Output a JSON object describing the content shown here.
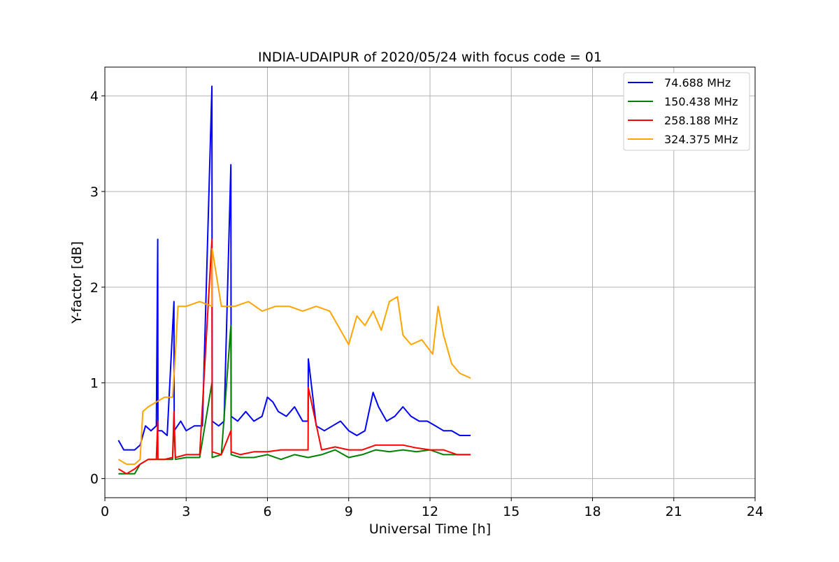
{
  "chart_data": {
    "type": "line",
    "title": "INDIA-UDAIPUR of 2020/05/24 with focus code = 01",
    "xlabel": "Universal Time [h]",
    "ylabel": "Y-factor [dB]",
    "xlim": [
      0,
      24
    ],
    "ylim": [
      -0.2,
      4.3
    ],
    "xticks": [
      0,
      3,
      6,
      9,
      12,
      15,
      18,
      21,
      24
    ],
    "yticks": [
      0,
      1,
      2,
      3,
      4
    ],
    "grid": true,
    "legend_position": "top-right",
    "series": [
      {
        "name": " 74.688 MHz",
        "color": "#0000ff",
        "x": [
          0.5,
          0.7,
          0.9,
          1.1,
          1.3,
          1.5,
          1.7,
          1.9,
          1.95,
          1.96,
          2.1,
          2.3,
          2.55,
          2.56,
          2.8,
          3.0,
          3.3,
          3.6,
          3.95,
          3.96,
          4.2,
          4.4,
          4.65,
          4.66,
          4.9,
          5.2,
          5.5,
          5.8,
          6.0,
          6.2,
          6.4,
          6.7,
          7.0,
          7.3,
          7.5,
          7.51,
          7.8,
          8.1,
          8.4,
          8.7,
          9.0,
          9.3,
          9.6,
          9.9,
          10.1,
          10.4,
          10.7,
          11.0,
          11.3,
          11.6,
          11.9,
          12.2,
          12.5,
          12.8,
          13.1,
          13.5
        ],
        "y": [
          0.4,
          0.3,
          0.3,
          0.3,
          0.35,
          0.55,
          0.5,
          0.55,
          2.5,
          0.5,
          0.5,
          0.45,
          1.85,
          0.5,
          0.6,
          0.5,
          0.55,
          0.55,
          4.1,
          0.6,
          0.55,
          0.6,
          3.28,
          0.65,
          0.6,
          0.7,
          0.6,
          0.65,
          0.85,
          0.8,
          0.7,
          0.65,
          0.75,
          0.6,
          0.6,
          1.25,
          0.55,
          0.5,
          0.55,
          0.6,
          0.5,
          0.45,
          0.5,
          0.9,
          0.75,
          0.6,
          0.65,
          0.75,
          0.65,
          0.6,
          0.6,
          0.55,
          0.5,
          0.5,
          0.45,
          0.45
        ]
      },
      {
        "name": "150.438 MHz",
        "color": "#008000",
        "x": [
          0.5,
          0.8,
          1.1,
          1.3,
          1.6,
          1.9,
          2.2,
          2.5,
          2.55,
          2.6,
          3.0,
          3.5,
          3.95,
          3.96,
          4.3,
          4.65,
          4.66,
          5.0,
          5.5,
          6.0,
          6.5,
          7.0,
          7.5,
          8.0,
          8.5,
          9.0,
          9.5,
          10.0,
          10.5,
          11.0,
          11.5,
          12.0,
          12.5,
          13.0,
          13.5
        ],
        "y": [
          0.05,
          0.05,
          0.05,
          0.15,
          0.2,
          0.2,
          0.2,
          0.2,
          0.6,
          0.2,
          0.22,
          0.22,
          1.0,
          0.22,
          0.25,
          1.6,
          0.25,
          0.22,
          0.22,
          0.25,
          0.2,
          0.25,
          0.22,
          0.25,
          0.3,
          0.22,
          0.25,
          0.3,
          0.28,
          0.3,
          0.28,
          0.3,
          0.25,
          0.25,
          0.25
        ]
      },
      {
        "name": "258.188 MHz",
        "color": "#ff0000",
        "x": [
          0.5,
          0.8,
          1.1,
          1.3,
          1.6,
          1.9,
          1.95,
          1.96,
          2.2,
          2.5,
          2.55,
          2.6,
          3.0,
          3.5,
          3.95,
          3.96,
          4.3,
          4.65,
          4.66,
          5.0,
          5.5,
          6.0,
          6.5,
          7.0,
          7.5,
          7.51,
          8.0,
          8.5,
          9.0,
          9.5,
          10.0,
          10.5,
          11.0,
          11.5,
          12.0,
          12.5,
          13.0,
          13.5
        ],
        "y": [
          0.1,
          0.05,
          0.1,
          0.15,
          0.2,
          0.2,
          0.6,
          0.2,
          0.2,
          0.22,
          0.7,
          0.22,
          0.25,
          0.25,
          2.5,
          0.28,
          0.25,
          0.5,
          0.28,
          0.25,
          0.28,
          0.28,
          0.3,
          0.3,
          0.3,
          0.95,
          0.3,
          0.33,
          0.3,
          0.3,
          0.35,
          0.35,
          0.35,
          0.32,
          0.3,
          0.3,
          0.25,
          0.25
        ]
      },
      {
        "name": "324.375 MHz",
        "color": "#ffa500",
        "x": [
          0.5,
          0.8,
          1.1,
          1.3,
          1.4,
          1.6,
          1.9,
          2.2,
          2.5,
          2.6,
          2.7,
          3.0,
          3.5,
          3.95,
          3.96,
          4.3,
          4.8,
          5.3,
          5.8,
          6.3,
          6.8,
          7.3,
          7.8,
          8.3,
          8.7,
          9.0,
          9.3,
          9.6,
          9.9,
          10.2,
          10.5,
          10.8,
          11.0,
          11.3,
          11.7,
          12.1,
          12.3,
          12.5,
          12.8,
          13.1,
          13.5
        ],
        "y": [
          0.2,
          0.15,
          0.15,
          0.2,
          0.7,
          0.75,
          0.8,
          0.85,
          0.85,
          1.3,
          1.8,
          1.8,
          1.85,
          1.8,
          2.4,
          1.8,
          1.8,
          1.85,
          1.75,
          1.8,
          1.8,
          1.75,
          1.8,
          1.75,
          1.55,
          1.4,
          1.7,
          1.6,
          1.75,
          1.55,
          1.85,
          1.9,
          1.5,
          1.4,
          1.45,
          1.3,
          1.8,
          1.5,
          1.2,
          1.1,
          1.05
        ]
      }
    ]
  }
}
